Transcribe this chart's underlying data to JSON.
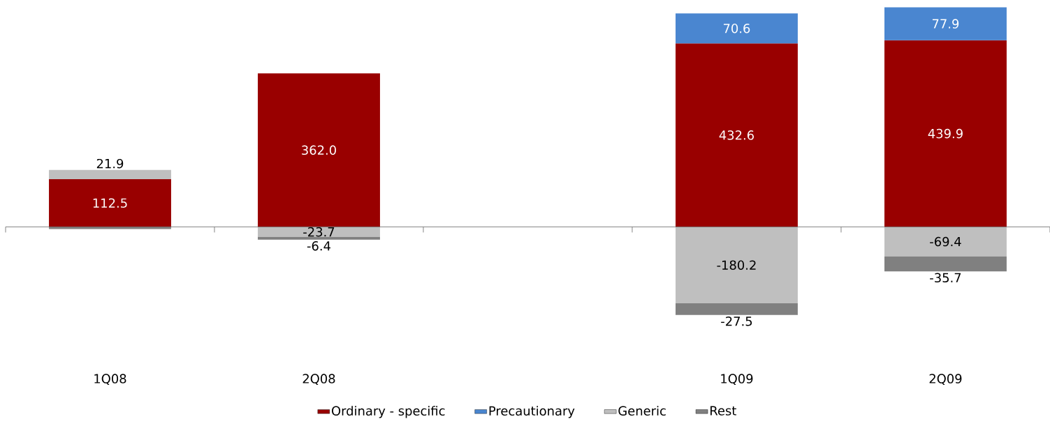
{
  "chart_data": {
    "type": "bar",
    "stacked": true,
    "categories": [
      "1Q08",
      "2Q08",
      null,
      "1Q09",
      "2Q09"
    ],
    "legend": "bottom",
    "series": [
      {
        "name": "Ordinary - specific",
        "color": "#990000",
        "values": [
          112.5,
          362.0,
          null,
          432.6,
          439.9
        ],
        "value_labels": [
          "112.5",
          "362.0",
          null,
          "432.6",
          "439.9"
        ]
      },
      {
        "name": "Precautionary",
        "color": "#4a86d0",
        "values": [
          null,
          null,
          null,
          70.6,
          77.9
        ],
        "value_labels": [
          null,
          null,
          null,
          "70.6",
          "77.9"
        ]
      },
      {
        "name": "Generic",
        "color": "#bfbfbf",
        "values": [
          21.9,
          -23.7,
          null,
          -180.2,
          -69.4
        ],
        "value_labels": [
          "21.9",
          "-23.7",
          null,
          "-180.2",
          "-69.4"
        ]
      },
      {
        "name": "Rest",
        "color": "#808080",
        "values": [
          -5,
          -6.4,
          null,
          -27.5,
          -35.7
        ],
        "value_labels": [
          null,
          "-6.4",
          null,
          "-27.5",
          "-35.7"
        ]
      }
    ]
  }
}
